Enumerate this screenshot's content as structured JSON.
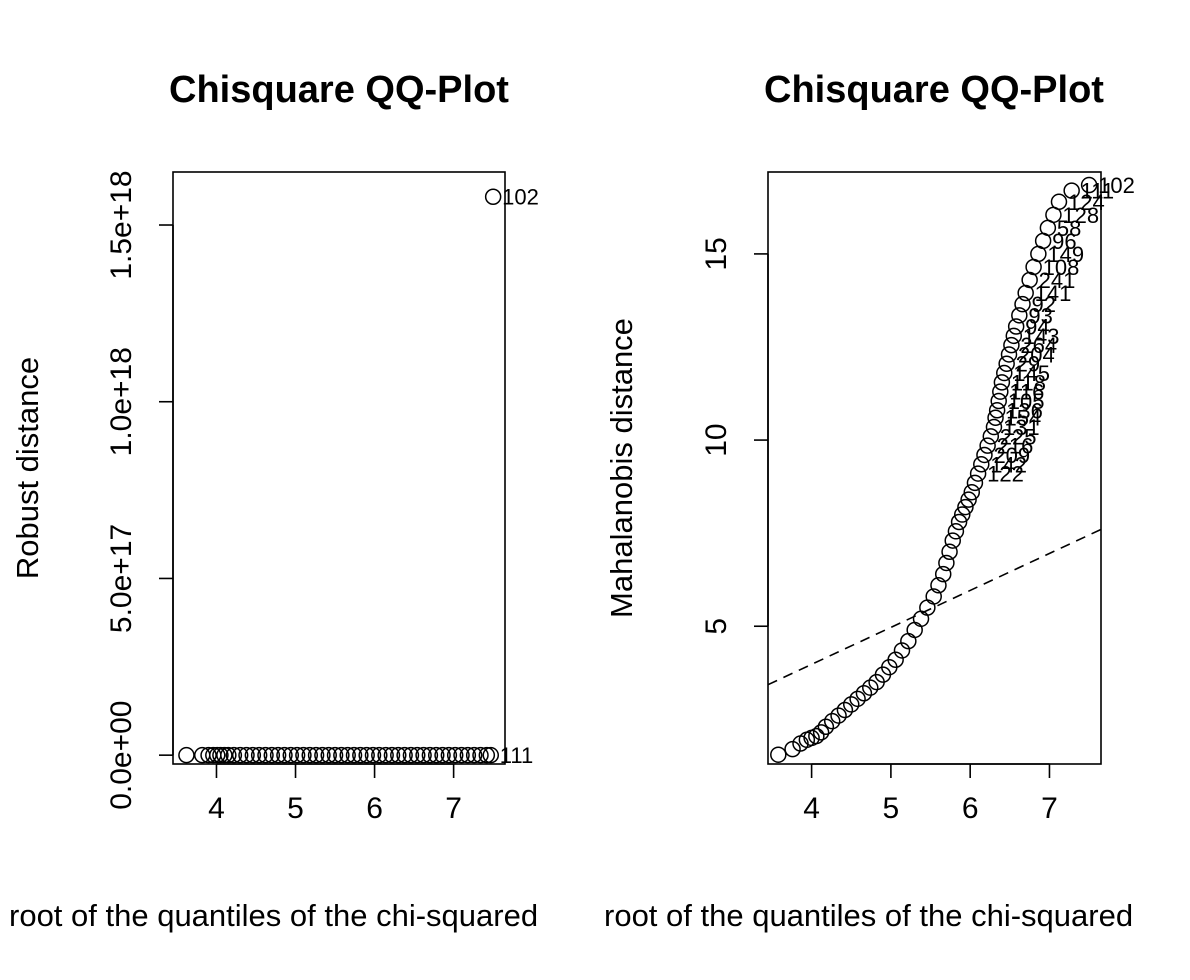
{
  "chart_data": [
    {
      "type": "scatter",
      "title": "Chisquare QQ-Plot",
      "xlabel": "Square root of the quantiles of the chi-squared distribution",
      "ylabel": "Robust distance",
      "xlim": [
        3.45,
        7.65
      ],
      "ylim": [
        -2.5e+16,
        1.65e+18
      ],
      "xticks": [
        4,
        5,
        6,
        7
      ],
      "xtick_labels": [
        "4",
        "5",
        "6",
        "7"
      ],
      "yticks": [
        0,
        5e+17,
        1e+18,
        1.5e+18
      ],
      "ytick_labels": [
        "0.0e+00",
        "5.0e+17",
        "1.0e+18",
        "1.5e+18"
      ],
      "grid": false,
      "points": {
        "x": [
          3.62,
          3.82,
          3.9,
          3.96,
          4.01,
          4.05,
          4.1,
          4.15,
          4.22,
          4.3,
          4.38,
          4.46,
          4.54,
          4.62,
          4.7,
          4.78,
          4.86,
          4.94,
          5.02,
          5.1,
          5.18,
          5.26,
          5.34,
          5.42,
          5.5,
          5.58,
          5.66,
          5.74,
          5.82,
          5.9,
          5.98,
          6.06,
          6.14,
          6.22,
          6.3,
          6.38,
          6.46,
          6.54,
          6.62,
          6.7,
          6.78,
          6.86,
          6.94,
          7.02,
          7.1,
          7.18,
          7.26,
          7.34,
          7.42,
          7.47,
          7.5
        ],
        "y": [
          0,
          0,
          0,
          0,
          0,
          0,
          0,
          0,
          0,
          0,
          0,
          0,
          0,
          0,
          0,
          0,
          0,
          0,
          0,
          0,
          0,
          0,
          0,
          0,
          0,
          0,
          0,
          0,
          0,
          0,
          0,
          0,
          0,
          0,
          0,
          0,
          0,
          0,
          0,
          0,
          0,
          0,
          0,
          0,
          0,
          0,
          0,
          0,
          0,
          0,
          1.58e+18
        ]
      },
      "labels": [
        {
          "text": "102",
          "x": 7.5,
          "y": 1.58e+18
        },
        {
          "text": "111",
          "x": 7.47,
          "y": 0
        }
      ]
    },
    {
      "type": "scatter",
      "title": "Chisquare QQ-Plot",
      "xlabel": "Square root of the quantiles of the chi-squared distribution",
      "ylabel": "Mahalanobis distance",
      "xlim": [
        3.45,
        7.65
      ],
      "ylim": [
        1.3,
        17.2
      ],
      "xticks": [
        4,
        5,
        6,
        7
      ],
      "xtick_labels": [
        "4",
        "5",
        "6",
        "7"
      ],
      "yticks": [
        5,
        10,
        15
      ],
      "ytick_labels": [
        "5",
        "10",
        "15"
      ],
      "grid": false,
      "reference_line": {
        "style": "dashed",
        "x": [
          3.45,
          7.65
        ],
        "y": [
          3.43,
          7.6
        ]
      },
      "points": {
        "x": [
          3.58,
          3.76,
          3.86,
          3.94,
          4.0,
          4.06,
          4.12,
          4.18,
          4.26,
          4.34,
          4.42,
          4.5,
          4.58,
          4.66,
          4.74,
          4.82,
          4.9,
          4.98,
          5.06,
          5.14,
          5.22,
          5.3,
          5.38,
          5.46,
          5.54,
          5.6,
          5.66,
          5.7,
          5.74,
          5.78,
          5.82,
          5.86,
          5.9,
          5.94,
          5.98,
          6.02,
          6.06,
          6.1,
          6.14,
          6.18,
          6.22,
          6.26,
          6.3,
          6.32,
          6.34,
          6.36,
          6.38,
          6.4,
          6.43,
          6.46,
          6.49,
          6.52,
          6.55,
          6.58,
          6.62,
          6.66,
          6.7,
          6.75,
          6.8,
          6.86,
          6.92,
          6.98,
          7.05,
          7.12,
          7.28,
          7.5
        ],
        "y": [
          1.55,
          1.7,
          1.85,
          1.95,
          2.0,
          2.05,
          2.15,
          2.3,
          2.45,
          2.6,
          2.75,
          2.9,
          3.05,
          3.2,
          3.35,
          3.5,
          3.7,
          3.9,
          4.1,
          4.35,
          4.6,
          4.9,
          5.2,
          5.5,
          5.8,
          6.1,
          6.4,
          6.7,
          7.0,
          7.3,
          7.55,
          7.8,
          8.0,
          8.2,
          8.4,
          8.6,
          8.85,
          9.1,
          9.35,
          9.6,
          9.85,
          10.1,
          10.35,
          10.6,
          10.8,
          11.05,
          11.3,
          11.55,
          11.8,
          12.05,
          12.3,
          12.55,
          12.8,
          13.05,
          13.35,
          13.65,
          13.95,
          14.3,
          14.65,
          15.0,
          15.35,
          15.7,
          16.05,
          16.4,
          16.7,
          16.85
        ]
      },
      "labels": [
        {
          "text": "102",
          "x": 7.5,
          "y": 16.85
        },
        {
          "text": "111",
          "x": 7.28,
          "y": 16.7
        },
        {
          "text": "124",
          "x": 7.12,
          "y": 16.4
        },
        {
          "text": "128",
          "x": 7.05,
          "y": 16.05
        },
        {
          "text": "58",
          "x": 6.98,
          "y": 15.7
        },
        {
          "text": "96",
          "x": 6.92,
          "y": 15.35
        },
        {
          "text": "149",
          "x": 6.86,
          "y": 15.0
        },
        {
          "text": "108",
          "x": 6.8,
          "y": 14.65
        },
        {
          "text": "241",
          "x": 6.75,
          "y": 14.3
        },
        {
          "text": "141",
          "x": 6.7,
          "y": 13.95
        },
        {
          "text": "92",
          "x": 6.66,
          "y": 13.65
        },
        {
          "text": "93",
          "x": 6.62,
          "y": 13.35
        },
        {
          "text": "94",
          "x": 6.58,
          "y": 13.05
        },
        {
          "text": "143",
          "x": 6.55,
          "y": 12.8
        },
        {
          "text": "264",
          "x": 6.52,
          "y": 12.55
        },
        {
          "text": "204",
          "x": 6.49,
          "y": 12.3
        },
        {
          "text": "29",
          "x": 6.46,
          "y": 12.05
        },
        {
          "text": "145",
          "x": 6.43,
          "y": 11.8
        },
        {
          "text": "118",
          "x": 6.4,
          "y": 11.55
        },
        {
          "text": "116",
          "x": 6.38,
          "y": 11.3
        },
        {
          "text": "105",
          "x": 6.36,
          "y": 11.05
        },
        {
          "text": "136",
          "x": 6.34,
          "y": 10.8
        },
        {
          "text": "154",
          "x": 6.32,
          "y": 10.6
        },
        {
          "text": "131",
          "x": 6.3,
          "y": 10.35
        },
        {
          "text": "225",
          "x": 6.26,
          "y": 10.1
        },
        {
          "text": "216",
          "x": 6.22,
          "y": 9.85
        },
        {
          "text": "209",
          "x": 6.18,
          "y": 9.6
        },
        {
          "text": "142",
          "x": 6.14,
          "y": 9.35
        },
        {
          "text": "122",
          "x": 6.1,
          "y": 9.1
        }
      ]
    }
  ],
  "bottom_label": {
    "left": "root of the quantiles of the chi-squared",
    "right": "root of the quantiles of the chi-squared"
  }
}
